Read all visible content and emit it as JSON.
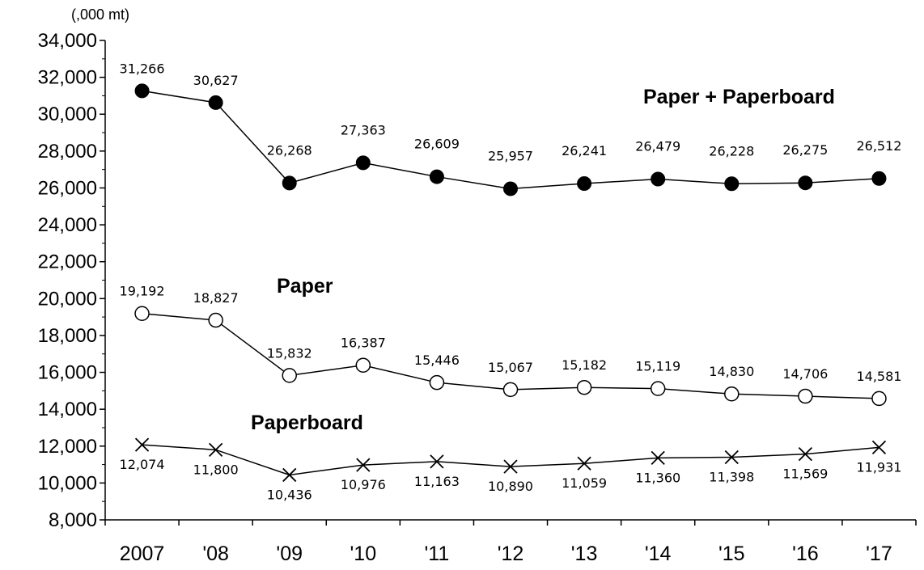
{
  "chart_data": {
    "type": "line",
    "unit_label": "(,000 mt)",
    "categories": [
      "2007",
      "'08",
      "'09",
      "'10",
      "'11",
      "'12",
      "'13",
      "'14",
      "'15",
      "'16",
      "'17"
    ],
    "y_ticks": [
      "8,000",
      "10,000",
      "12,000",
      "14,000",
      "16,000",
      "18,000",
      "20,000",
      "22,000",
      "24,000",
      "26,000",
      "28,000",
      "30,000",
      "32,000",
      "34,000"
    ],
    "ylim": [
      8000,
      34000
    ],
    "grid": false,
    "legend": "none",
    "series": [
      {
        "name": "Paper + Paperboard",
        "marker": "filled-circle",
        "values": [
          31266,
          30627,
          26268,
          27363,
          26609,
          25957,
          26241,
          26479,
          26228,
          26275,
          26512
        ],
        "labels": [
          "31,266",
          "30,627",
          "26,268",
          "27,363",
          "26,609",
          "25,957",
          "26,241",
          "26,479",
          "26,228",
          "26,275",
          "26,512"
        ]
      },
      {
        "name": "Paper",
        "marker": "open-circle",
        "values": [
          19192,
          18827,
          15832,
          16387,
          15446,
          15067,
          15182,
          15119,
          14830,
          14706,
          14581
        ],
        "labels": [
          "19,192",
          "18,827",
          "15,832",
          "16,387",
          "15,446",
          "15,067",
          "15,182",
          "15,119",
          "14,830",
          "14,706",
          "14,581"
        ]
      },
      {
        "name": "Paperboard",
        "marker": "x",
        "values": [
          12074,
          11800,
          10436,
          10976,
          11163,
          10890,
          11059,
          11360,
          11398,
          11569,
          11931
        ],
        "labels": [
          "12,074",
          "11,800",
          "10,436",
          "10,976",
          "11,163",
          "10,890",
          "11,059",
          "11,360",
          "11,398",
          "11,569",
          "11,931"
        ]
      }
    ]
  }
}
